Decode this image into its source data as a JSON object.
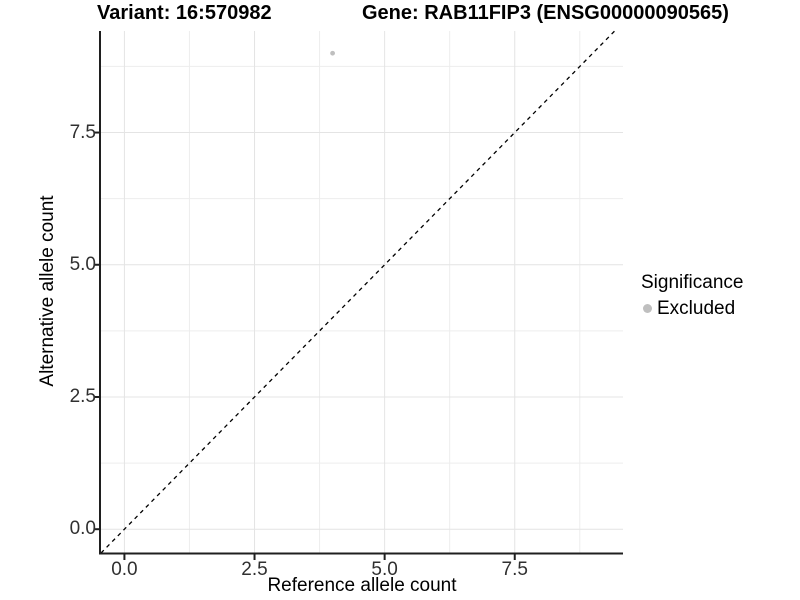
{
  "chart_data": {
    "type": "scatter",
    "titles": {
      "left": "Variant: 16:570982",
      "right": "Gene: RAB11FIP3 (ENSG00000090565)"
    },
    "xlabel": "Reference allele count",
    "ylabel": "Alternative allele count",
    "xlim": [
      -0.45,
      9.58
    ],
    "ylim": [
      -0.45,
      9.42
    ],
    "x_ticks": [
      0,
      2.5,
      5,
      7.5
    ],
    "x_tick_labels": [
      "0.0",
      "2.5",
      "5.0",
      "7.5"
    ],
    "y_ticks": [
      0,
      2.5,
      5,
      7.5
    ],
    "y_tick_labels": [
      "0.0",
      "2.5",
      "5.0",
      "7.5"
    ],
    "minor_ticks_x": [
      1.25,
      3.75,
      6.25,
      8.75
    ],
    "minor_ticks_y": [
      1.25,
      3.75,
      6.25,
      8.75
    ],
    "grid": {
      "major": true,
      "minor": true
    },
    "points": [
      {
        "x": 4,
        "y": 9,
        "series": "Excluded",
        "color": "#bfbfbf"
      }
    ],
    "identity_line": {
      "slope": 1,
      "intercept": 0,
      "style": "dashed",
      "color": "#000000"
    },
    "legend": {
      "title": "Significance",
      "position": "right",
      "entries": [
        {
          "label": "Excluded",
          "color": "#bfbfbf"
        }
      ]
    },
    "colors": {
      "grid_major": "#e4e4e4",
      "grid_minor": "#ededed",
      "axis_line": "#1f1f1f",
      "tick_text": "#303030",
      "background": "#ffffff"
    }
  }
}
